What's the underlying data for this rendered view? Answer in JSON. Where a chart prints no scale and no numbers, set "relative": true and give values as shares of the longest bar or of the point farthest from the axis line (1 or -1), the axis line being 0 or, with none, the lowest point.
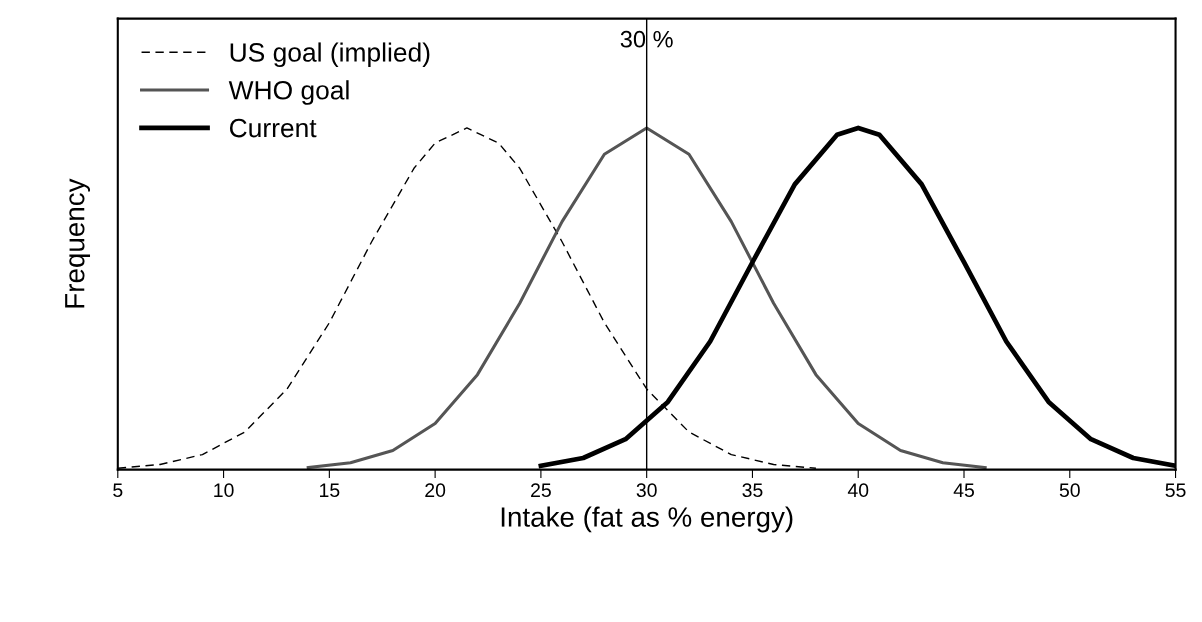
{
  "chart_data": {
    "type": "line",
    "relative": true,
    "xlabel": "Intake (fat as % energy)",
    "ylabel": "Frequency",
    "xlim": [
      5,
      55
    ],
    "xticks": [
      5,
      10,
      15,
      20,
      25,
      30,
      35,
      40,
      45,
      50,
      55
    ],
    "legend": "top left",
    "grid": false,
    "marker": "none",
    "ref_lines": [
      {
        "axis": "x",
        "value": 30,
        "label": "30 %",
        "color": "#000000",
        "line_style": "solid"
      }
    ],
    "series": [
      {
        "name": "US goal (implied)",
        "color": "#000000",
        "line_style": "dashed",
        "x": [
          5,
          7,
          9,
          11,
          13,
          15,
          17,
          19,
          20,
          21.5,
          23,
          24,
          26,
          28,
          30,
          32,
          34,
          36,
          38
        ],
        "values": [
          0.004,
          0.015,
          0.044,
          0.11,
          0.236,
          0.43,
          0.667,
          0.882,
          0.956,
          1,
          0.956,
          0.882,
          0.667,
          0.43,
          0.236,
          0.11,
          0.044,
          0.015,
          0.004
        ]
      },
      {
        "name": "WHO goal",
        "color": "#555555",
        "line_style": "solid",
        "x": [
          14,
          16,
          18,
          20,
          22,
          24,
          26,
          28,
          30,
          32,
          34,
          36,
          38,
          40,
          42,
          44,
          46
        ],
        "values": [
          0.006,
          0.02,
          0.056,
          0.135,
          0.278,
          0.487,
          0.726,
          0.923,
          1,
          0.923,
          0.726,
          0.487,
          0.278,
          0.135,
          0.056,
          0.02,
          0.006
        ]
      },
      {
        "name": "Current",
        "color": "#000000",
        "line_style": "solid",
        "x": [
          25,
          27,
          29,
          31,
          33,
          35,
          37,
          39,
          40,
          41,
          43,
          45,
          47,
          49,
          51,
          53,
          55
        ],
        "values": [
          0.011,
          0.034,
          0.089,
          0.198,
          0.375,
          0.607,
          0.835,
          0.98,
          1,
          0.98,
          0.835,
          0.607,
          0.375,
          0.198,
          0.089,
          0.034,
          0.011
        ]
      }
    ]
  }
}
